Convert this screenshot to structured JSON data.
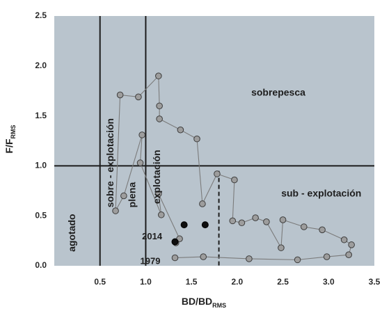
{
  "chart_data": {
    "type": "scatter",
    "xlabel": {
      "main": "BD/BD",
      "sub": "RMS"
    },
    "ylabel": {
      "main": "F/F",
      "sub": "RMS"
    },
    "xlim": [
      0,
      3.5
    ],
    "ylim": [
      0,
      2.5
    ],
    "x_ticks": [
      "0.5",
      "1.0",
      "1.5",
      "2.0",
      "2.5",
      "3.0",
      "3.5"
    ],
    "y_ticks": [
      "0.0",
      "0.5",
      "1.0",
      "1.5",
      "2.0",
      "2.5"
    ],
    "grid": false,
    "reference_lines": [
      {
        "orientation": "vertical",
        "value": 0.5,
        "style": "solid"
      },
      {
        "orientation": "vertical",
        "value": 1.0,
        "style": "solid"
      },
      {
        "orientation": "horizontal",
        "value": 1.0,
        "style": "solid"
      },
      {
        "orientation": "vertical",
        "value": 1.8,
        "from": 0,
        "to": 0.95,
        "style": "dashed"
      }
    ],
    "zone_labels": [
      {
        "text": "sobrepesca",
        "x": 2.45,
        "y": 1.73,
        "rotate": 0
      },
      {
        "text": "sub - explotación",
        "x": 2.92,
        "y": 0.72,
        "rotate": 0
      },
      {
        "text": "agotado",
        "x": 0.2,
        "y": 0.33,
        "rotate": -90
      },
      {
        "text": "sobre - explotación",
        "x": 0.62,
        "y": 1.03,
        "rotate": -90
      },
      {
        "text": "plena",
        "x": 0.86,
        "y": 0.71,
        "rotate": -90
      },
      {
        "text": "explotación",
        "x": 1.13,
        "y": 0.89,
        "rotate": -90
      }
    ],
    "year_labels": [
      {
        "text": "2014",
        "x": 1.18,
        "y": 0.29
      },
      {
        "text": "1979",
        "x": 1.16,
        "y": 0.04
      }
    ],
    "series": [
      {
        "color": "#7b7b7b",
        "points": [
          [
            1.32,
            0.08
          ],
          [
            1.63,
            0.09
          ],
          [
            2.13,
            0.07
          ],
          [
            2.66,
            0.06
          ],
          [
            2.98,
            0.09
          ],
          [
            3.22,
            0.11
          ],
          [
            3.25,
            0.21
          ],
          [
            3.17,
            0.26
          ],
          [
            2.93,
            0.36
          ],
          [
            2.73,
            0.39
          ],
          [
            2.5,
            0.46
          ],
          [
            2.48,
            0.18
          ],
          [
            2.32,
            0.44
          ],
          [
            2.2,
            0.48
          ],
          [
            2.05,
            0.43
          ],
          [
            1.95,
            0.45
          ],
          [
            1.97,
            0.86
          ],
          [
            1.78,
            0.92
          ],
          [
            1.62,
            0.62
          ],
          [
            1.56,
            1.27
          ],
          [
            1.38,
            1.36
          ],
          [
            1.15,
            1.47
          ],
          [
            1.15,
            1.6
          ],
          [
            1.14,
            1.9
          ],
          [
            0.92,
            1.69
          ],
          [
            0.72,
            1.71
          ],
          [
            0.67,
            0.55
          ],
          [
            0.76,
            0.7
          ],
          [
            0.96,
            1.31
          ],
          [
            0.94,
            1.03
          ],
          [
            1.17,
            0.51
          ],
          [
            1.14,
            0.72
          ],
          [
            1.37,
            0.27
          ],
          [
            1.33,
            0.23
          ]
        ]
      }
    ],
    "highlight_points": [
      {
        "x": 1.42,
        "y": 0.41,
        "color": "#0e0e0e"
      },
      {
        "x": 1.65,
        "y": 0.41,
        "color": "#0e0e0e"
      },
      {
        "x": 1.32,
        "y": 0.24,
        "color": "#0e0e0e"
      }
    ],
    "colors": {
      "plot_background": "#b9c4cd",
      "outer_background": "#ffffff",
      "marker_light": "#9d9d9d",
      "marker_dark": "#0e0e0e",
      "line": "#7b7b7b"
    }
  }
}
